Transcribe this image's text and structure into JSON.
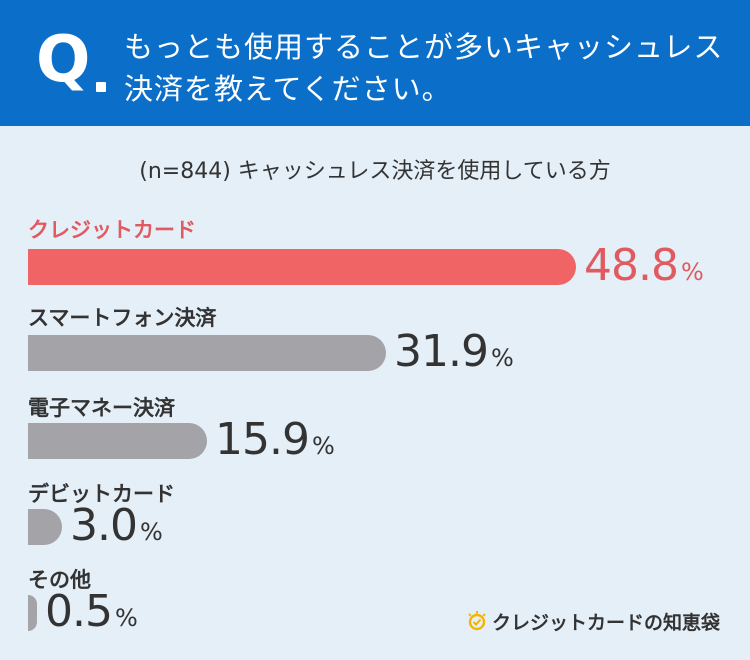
{
  "question": {
    "mark": "Q",
    "text_line1": "もっとも使用することが多いキャッシュレス",
    "text_line2": "決済を教えてください。"
  },
  "colors": {
    "header_bg": "#0b6fc9",
    "background": "#e4eff8",
    "highlight": "#f06465",
    "bar_default": "#a3a3a8"
  },
  "chart_data": {
    "type": "bar",
    "orientation": "horizontal",
    "subtitle": "(n=844) キャッシュレス決済を使用している方",
    "categories": [
      "クレジットカード",
      "スマートフォン決済",
      "電子マネー決済",
      "デビットカード",
      "その他"
    ],
    "values": [
      48.8,
      31.9,
      15.9,
      3.0,
      0.5
    ],
    "value_labels": [
      "48.8",
      "31.9",
      "15.9",
      "3.0",
      "0.5"
    ],
    "unit": "%",
    "highlight_index": 0,
    "xlim": [
      0,
      50
    ]
  },
  "brand": {
    "name": "クレジットカードの知恵袋",
    "icon": "lightbulb-icon"
  }
}
